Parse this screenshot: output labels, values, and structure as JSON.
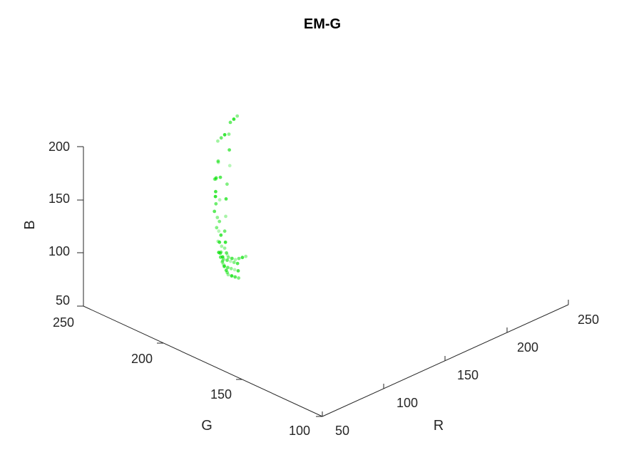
{
  "chart_data": {
    "type": "scatter",
    "title": "EM-G",
    "xlabel": "R",
    "ylabel": "G",
    "zlabel": "B",
    "xlim": [
      50,
      250
    ],
    "ylim": [
      100,
      250
    ],
    "zlim": [
      50,
      200
    ],
    "x_ticks": [
      "50",
      "100",
      "150",
      "200",
      "250"
    ],
    "y_ticks": [
      "100",
      "150",
      "200",
      "250"
    ],
    "z_ticks": [
      "50",
      "100",
      "150",
      "200"
    ],
    "grid": false,
    "legend": "none",
    "marker_color": "#00e000",
    "series": [
      {
        "values": [
          {
            "x": 95,
            "y": 200,
            "z": 196
          },
          {
            "x": 100,
            "y": 204,
            "z": 192
          },
          {
            "x": 88,
            "y": 196,
            "z": 188
          },
          {
            "x": 105,
            "y": 208,
            "z": 186
          },
          {
            "x": 92,
            "y": 200,
            "z": 182
          },
          {
            "x": 85,
            "y": 194,
            "z": 178
          },
          {
            "x": 98,
            "y": 204,
            "z": 176
          },
          {
            "x": 80,
            "y": 190,
            "z": 172
          },
          {
            "x": 90,
            "y": 198,
            "z": 168
          },
          {
            "x": 76,
            "y": 186,
            "z": 164
          },
          {
            "x": 84,
            "y": 194,
            "z": 160
          },
          {
            "x": 72,
            "y": 182,
            "z": 156
          },
          {
            "x": 78,
            "y": 188,
            "z": 152
          },
          {
            "x": 70,
            "y": 180,
            "z": 148
          },
          {
            "x": 74,
            "y": 184,
            "z": 144
          },
          {
            "x": 68,
            "y": 178,
            "z": 140
          },
          {
            "x": 72,
            "y": 182,
            "z": 136
          },
          {
            "x": 70,
            "y": 178,
            "z": 132
          },
          {
            "x": 76,
            "y": 184,
            "z": 128
          },
          {
            "x": 74,
            "y": 180,
            "z": 124
          },
          {
            "x": 80,
            "y": 186,
            "z": 120
          },
          {
            "x": 78,
            "y": 182,
            "z": 116
          },
          {
            "x": 86,
            "y": 190,
            "z": 112
          },
          {
            "x": 84,
            "y": 186,
            "z": 108
          },
          {
            "x": 92,
            "y": 194,
            "z": 104
          },
          {
            "x": 90,
            "y": 190,
            "z": 100
          },
          {
            "x": 100,
            "y": 198,
            "z": 96
          },
          {
            "x": 98,
            "y": 194,
            "z": 92
          },
          {
            "x": 108,
            "y": 202,
            "z": 88
          },
          {
            "x": 106,
            "y": 198,
            "z": 84
          },
          {
            "x": 116,
            "y": 206,
            "z": 80
          },
          {
            "x": 114,
            "y": 202,
            "z": 76
          },
          {
            "x": 124,
            "y": 210,
            "z": 72
          },
          {
            "x": 110,
            "y": 212,
            "z": 200
          },
          {
            "x": 118,
            "y": 216,
            "z": 196
          },
          {
            "x": 126,
            "y": 220,
            "z": 192
          },
          {
            "x": 132,
            "y": 222,
            "z": 188
          },
          {
            "x": 122,
            "y": 214,
            "z": 184
          },
          {
            "x": 112,
            "y": 206,
            "z": 180
          },
          {
            "x": 102,
            "y": 200,
            "z": 172
          },
          {
            "x": 96,
            "y": 196,
            "z": 164
          },
          {
            "x": 88,
            "y": 190,
            "z": 156
          },
          {
            "x": 82,
            "y": 186,
            "z": 148
          },
          {
            "x": 80,
            "y": 184,
            "z": 140
          },
          {
            "x": 82,
            "y": 186,
            "z": 132
          },
          {
            "x": 86,
            "y": 188,
            "z": 124
          },
          {
            "x": 92,
            "y": 192,
            "z": 116
          },
          {
            "x": 98,
            "y": 196,
            "z": 108
          },
          {
            "x": 106,
            "y": 200,
            "z": 100
          },
          {
            "x": 114,
            "y": 204,
            "z": 92
          },
          {
            "x": 122,
            "y": 208,
            "z": 86
          },
          {
            "x": 130,
            "y": 212,
            "z": 80
          },
          {
            "x": 138,
            "y": 216,
            "z": 74
          },
          {
            "x": 128,
            "y": 218,
            "z": 204
          },
          {
            "x": 136,
            "y": 222,
            "z": 200
          },
          {
            "x": 144,
            "y": 226,
            "z": 196
          },
          {
            "x": 94,
            "y": 198,
            "z": 184
          },
          {
            "x": 87,
            "y": 193,
            "z": 170
          },
          {
            "x": 79,
            "y": 187,
            "z": 158
          },
          {
            "x": 75,
            "y": 183,
            "z": 150
          },
          {
            "x": 73,
            "y": 181,
            "z": 142
          },
          {
            "x": 75,
            "y": 183,
            "z": 134
          },
          {
            "x": 79,
            "y": 185,
            "z": 126
          },
          {
            "x": 85,
            "y": 189,
            "z": 118
          },
          {
            "x": 93,
            "y": 193,
            "z": 110
          },
          {
            "x": 101,
            "y": 197,
            "z": 102
          },
          {
            "x": 109,
            "y": 201,
            "z": 94
          },
          {
            "x": 117,
            "y": 205,
            "z": 86
          }
        ]
      }
    ]
  }
}
